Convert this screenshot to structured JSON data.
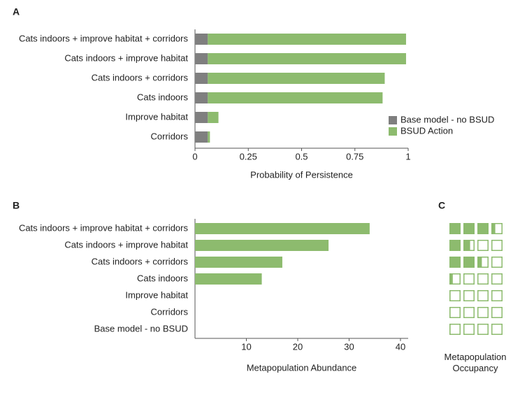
{
  "chart_data": [
    {
      "type": "stacked-barh",
      "panel": "A",
      "categories": [
        "Cats indoors + improve habitat + corridors",
        "Cats indoors + improve habitat",
        "Cats indoors + corridors",
        "Cats indoors",
        "Improve habitat",
        "Corridors"
      ],
      "series": [
        {
          "name": "Base model - no BSUD",
          "color": "#7f7f7f",
          "values": [
            0.06,
            0.06,
            0.06,
            0.06,
            0.06,
            0.06
          ]
        },
        {
          "name": "BSUD Action",
          "color": "#8dbb6e",
          "values": [
            0.93,
            0.93,
            0.83,
            0.82,
            0.05,
            0.01
          ]
        }
      ],
      "xlim": [
        0,
        1
      ],
      "xticks": [
        0,
        0.25,
        0.5,
        0.75,
        1
      ],
      "xlabel": "Probability of Persistence",
      "legend": "lower right"
    },
    {
      "type": "barh",
      "panel": "B",
      "categories": [
        "Cats indoors + improve habitat + corridors",
        "Cats indoors + improve habitat",
        "Cats indoors + corridors",
        "Cats indoors",
        "Improve habitat",
        "Corridors",
        "Base model - no BSUD"
      ],
      "values": [
        34,
        26,
        17,
        13,
        0,
        0,
        0
      ],
      "color": "#8dbb6e",
      "xlim": [
        0,
        41.5
      ],
      "xticks": [
        10,
        20,
        30,
        40
      ],
      "xlabel": "Metapopulation Abundance"
    },
    {
      "type": "grid",
      "panel": "C",
      "color": "#8dbb6e",
      "values": [
        [
          1,
          1,
          1,
          0.35
        ],
        [
          1,
          0.6,
          0,
          0
        ],
        [
          1,
          1,
          0.4,
          0
        ],
        [
          0.3,
          0,
          0,
          0
        ],
        [
          0.1,
          0,
          0,
          0
        ],
        [
          0.1,
          0,
          0,
          0
        ],
        [
          0.1,
          0,
          0,
          0
        ]
      ],
      "xlabel": "Metapopulation Occupancy"
    }
  ]
}
